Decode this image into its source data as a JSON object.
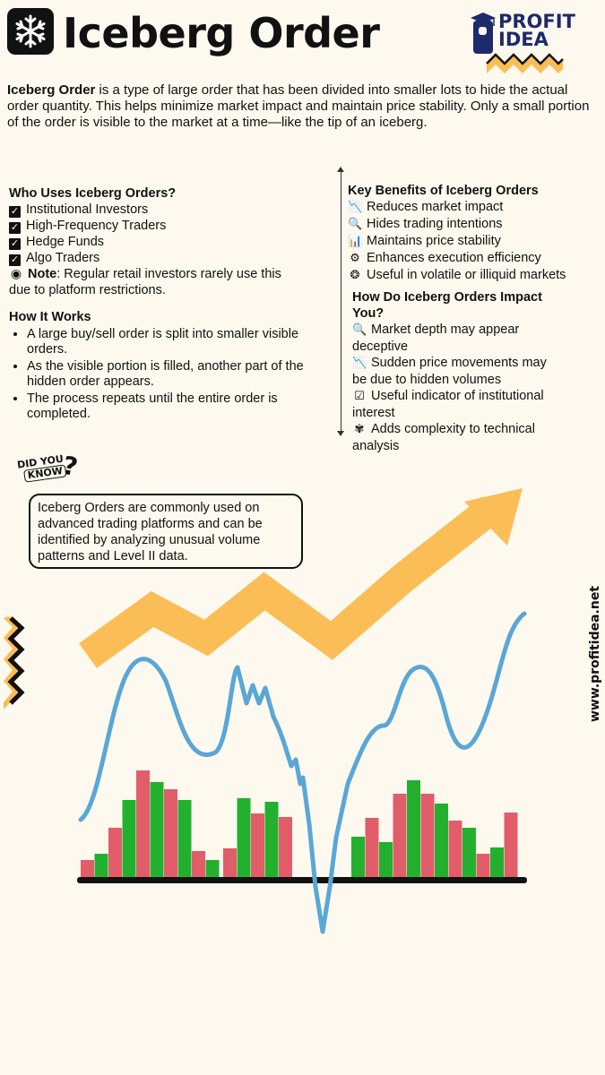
{
  "header": {
    "title": "Iceberg Order",
    "logo_line1": "PROFIT",
    "logo_line2": "IDEA"
  },
  "intro": {
    "term": "Iceberg Order",
    "text": " is a type of large order that has been divided into smaller lots to hide the actual order quantity. This helps minimize market impact and maintain price stability. Only a small portion of the order is visible to the market at a time—like the tip of an iceberg."
  },
  "who_uses": {
    "heading": "Who Uses Iceberg Orders?",
    "items": [
      "Institutional Investors",
      "High-Frequency Traders",
      "Hedge Funds",
      "Algo Traders"
    ],
    "note_label": "Note",
    "note_line1": ": Regular retail investors rarely use this",
    "note_line2": "due to platform restrictions."
  },
  "how_it_works": {
    "heading": "How It Works",
    "bullets": [
      "A large buy/sell order is split into smaller visible orders.",
      "As the visible portion is filled, another part of the hidden order appears.",
      "The process repeats until the entire order is completed."
    ]
  },
  "benefits": {
    "heading": "Key Benefits of Iceberg Orders",
    "items": [
      {
        "icon": "chart-down-icon",
        "text": "Reduces market impact"
      },
      {
        "icon": "magnifier-icon",
        "text": "Hides trading intentions"
      },
      {
        "icon": "bar-chart-icon",
        "text": "Maintains price stability"
      },
      {
        "icon": "gear-icon",
        "text": "Enhances execution efficiency"
      },
      {
        "icon": "brain-icon",
        "text": "Useful in volatile or illiquid markets"
      }
    ]
  },
  "impact": {
    "heading_line1": "How Do Iceberg Orders Impact",
    "heading_line2": "You?",
    "items": [
      {
        "icon": "magnifier-icon",
        "line1": "Market depth may appear",
        "line2": "deceptive"
      },
      {
        "icon": "chart-down-icon",
        "line1": "Sudden price movements may",
        "line2": "be due to hidden volumes"
      },
      {
        "icon": "check-chart-icon",
        "line1": "Useful indicator of institutional",
        "line2": "interest"
      },
      {
        "icon": "puzzle-icon",
        "line1": "Adds complexity to technical",
        "line2": "analysis"
      }
    ]
  },
  "did_you_know": {
    "badge_line1": "DID YOU",
    "badge_line2": "KNOW",
    "badge_mark": "?",
    "text": "Iceberg Orders are commonly used on advanced trading platforms and can be identified by analyzing unusual volume patterns and Level II data."
  },
  "footer": {
    "website": "www.profitidea.net"
  },
  "colors": {
    "background": "#fdf9ef",
    "accent_yellow": "#fbbd55",
    "line_blue": "#5aa7d6",
    "bar_red": "#e15d69",
    "bar_green": "#23b02f",
    "logo_navy": "#1d2a6b",
    "text": "#111111"
  }
}
